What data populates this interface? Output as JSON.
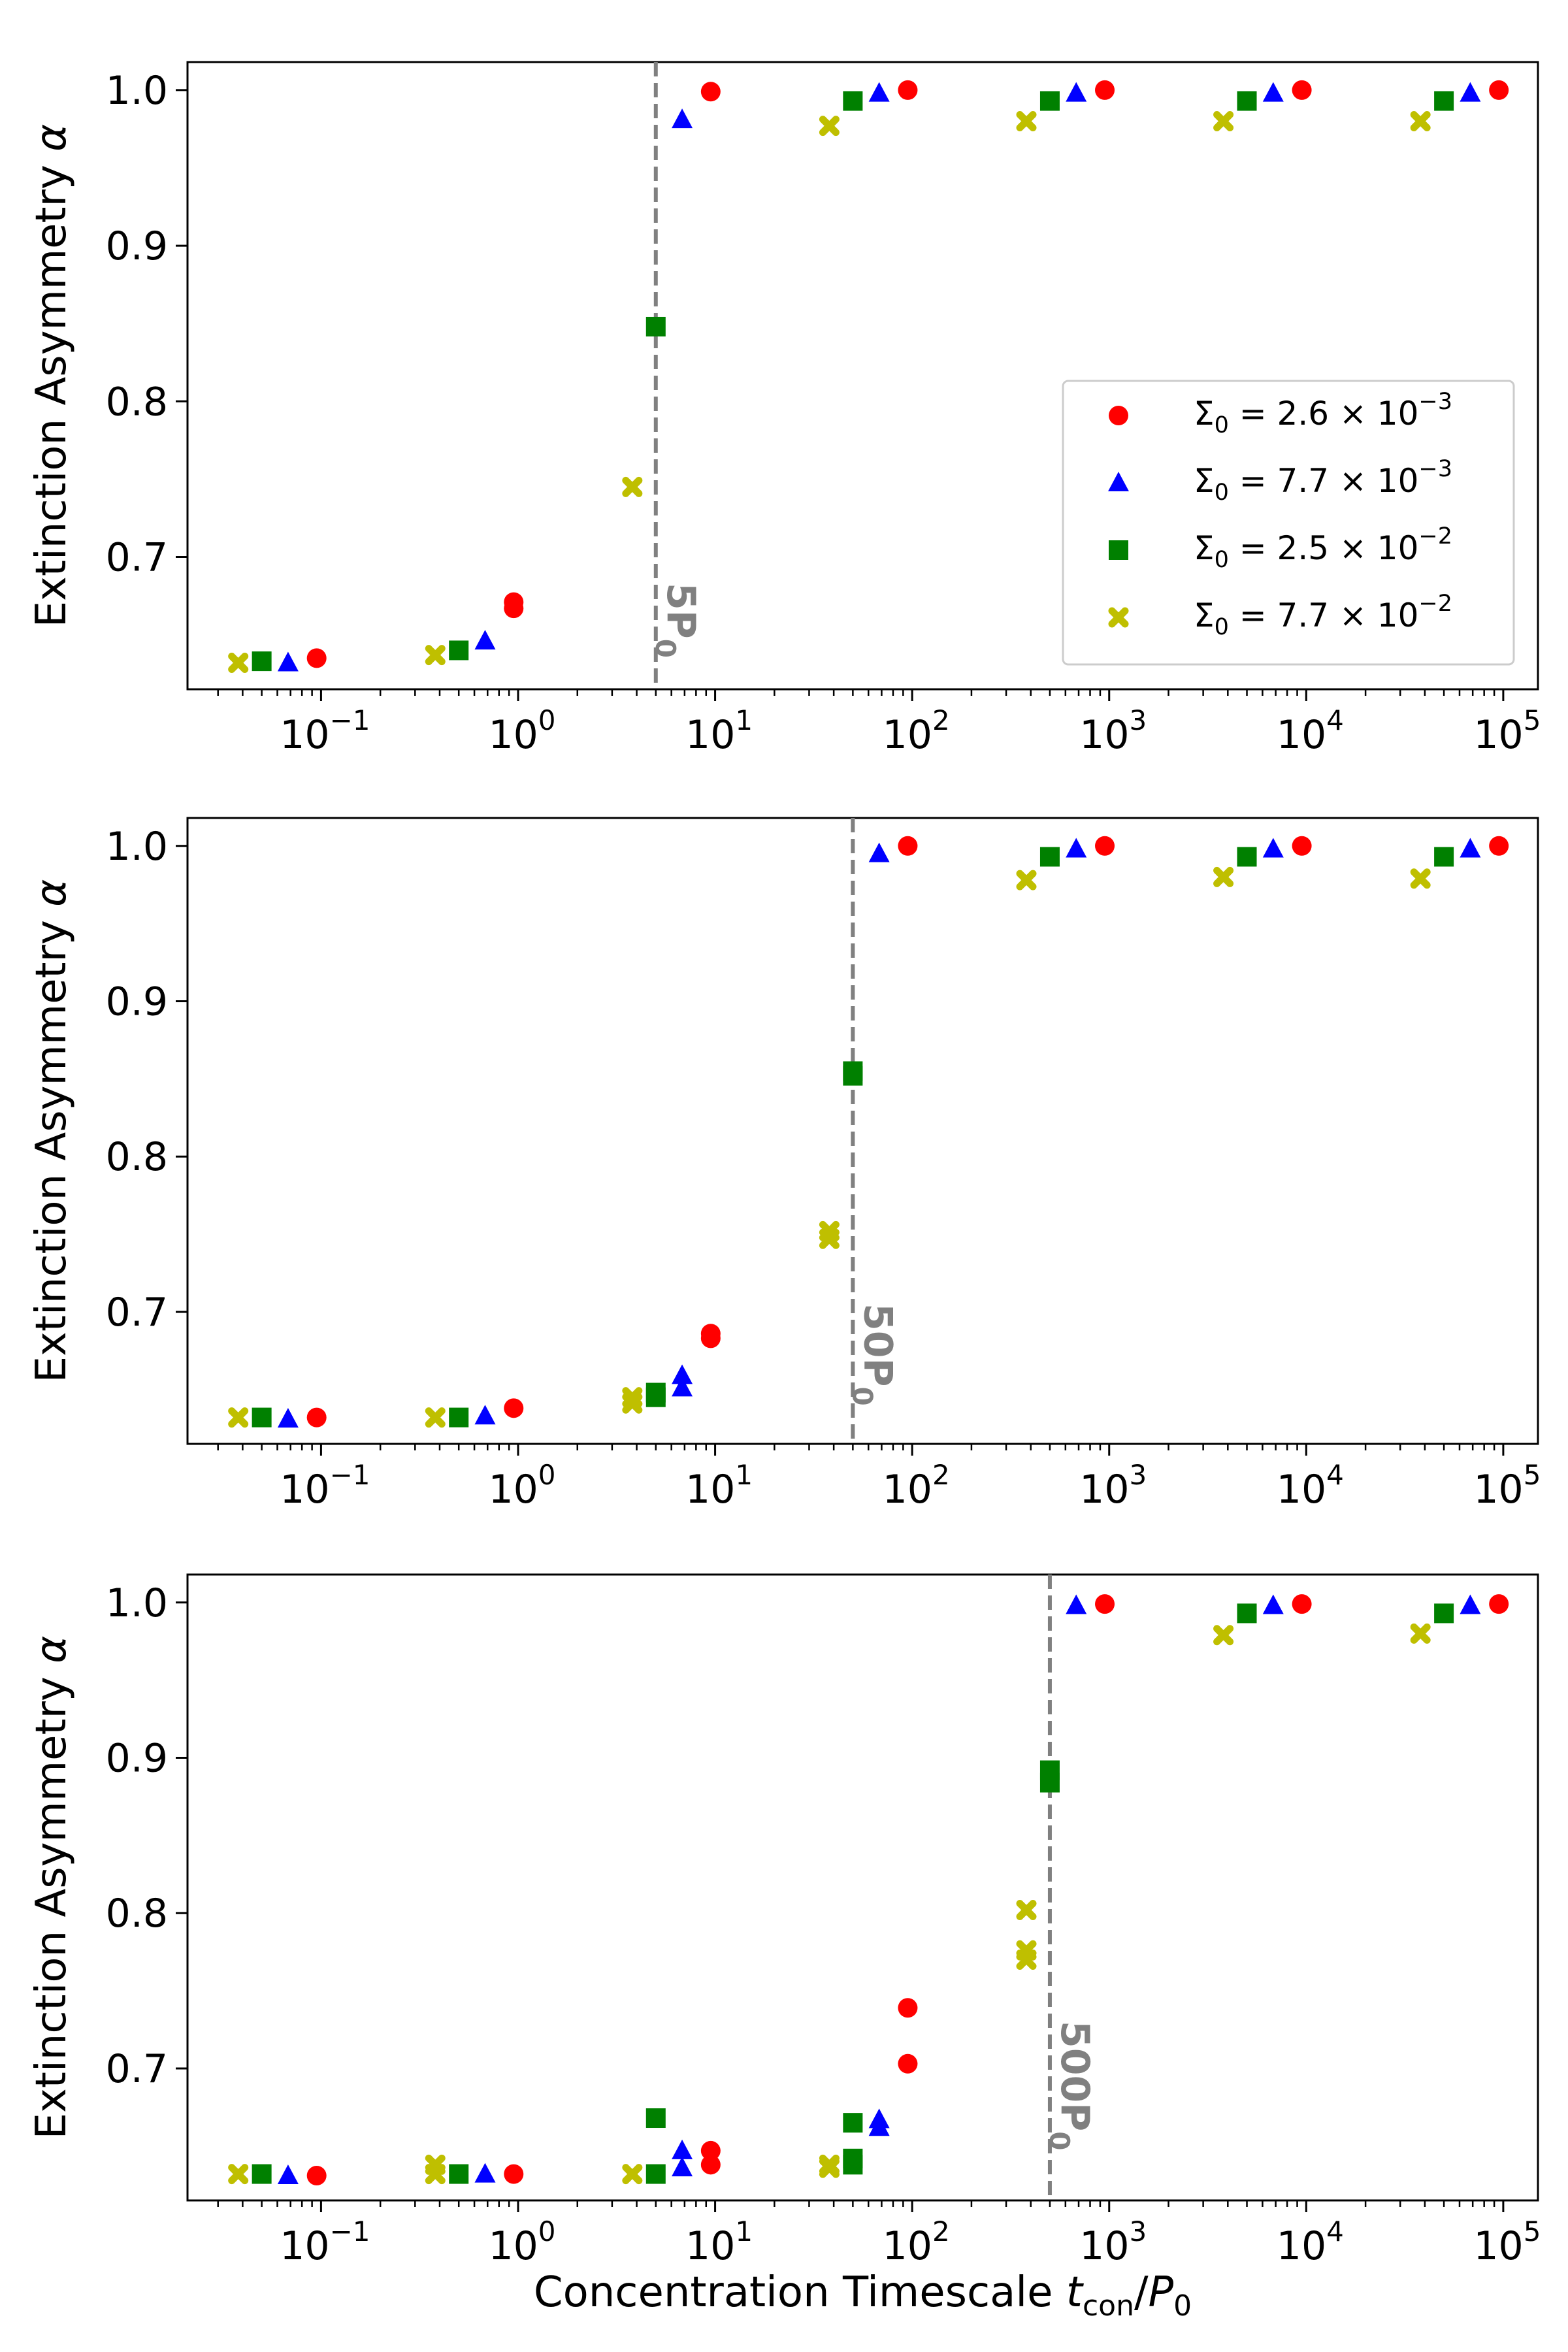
{
  "chart_data": [
    {
      "type": "scatter",
      "panel": "top",
      "xscale": "log",
      "xlim": [
        0.021,
        150000
      ],
      "ylim": [
        0.615,
        1.018
      ],
      "ylabel": "Extinction Asymmetry α",
      "xlabel": "",
      "xticks": [
        {
          "value": 0.1,
          "exp": "−1"
        },
        {
          "value": 1,
          "exp": "0"
        },
        {
          "value": 10,
          "exp": "1"
        },
        {
          "value": 100,
          "exp": "2"
        },
        {
          "value": 1000,
          "exp": "3"
        },
        {
          "value": 10000,
          "exp": "4"
        },
        {
          "value": 100000,
          "exp": "5"
        }
      ],
      "yticks": [
        {
          "value": 0.7,
          "label": "0.7"
        },
        {
          "value": 0.8,
          "label": "0.8"
        },
        {
          "value": 0.9,
          "label": "0.9"
        },
        {
          "value": 1.0,
          "label": "1.0"
        }
      ],
      "vline": {
        "x": 5,
        "label_main": "5P",
        "label_sub": "0"
      },
      "legend": {
        "position": "center-right",
        "entries": [
          {
            "series": "s1",
            "prefix": "Σ",
            "sub": "0",
            "mid": " = 2.6 × 10",
            "exp": "−3"
          },
          {
            "series": "s2",
            "prefix": "Σ",
            "sub": "0",
            "mid": " = 7.7 × 10",
            "exp": "−3"
          },
          {
            "series": "s3",
            "prefix": "Σ",
            "sub": "0",
            "mid": " = 2.5 × 10",
            "exp": "−2"
          },
          {
            "series": "s4",
            "prefix": "Σ",
            "sub": "0",
            "mid": " = 7.7 × 10",
            "exp": "−2"
          }
        ]
      },
      "series": [
        {
          "id": "s1",
          "name": "Σ0 = 2.6 × 10^-3",
          "marker": "circle",
          "color": "#ff0000",
          "x": [
            0.095,
            0.95,
            0.95,
            9.5,
            95,
            950,
            9500,
            95000
          ],
          "y": [
            0.635,
            0.667,
            0.671,
            0.999,
            1.0,
            1.0,
            1.0,
            1.0
          ]
        },
        {
          "id": "s2",
          "name": "Σ0 = 7.7 × 10^-3",
          "marker": "triangle",
          "color": "#0000ff",
          "x": [
            0.068,
            0.68,
            6.8,
            68,
            680,
            6800,
            68000
          ],
          "y": [
            0.632,
            0.646,
            0.981,
            0.998,
            0.998,
            0.998,
            0.998
          ]
        },
        {
          "id": "s3",
          "name": "Σ0 = 2.5 × 10^-2",
          "marker": "square",
          "color": "#008000",
          "x": [
            0.05,
            0.5,
            5,
            50,
            500,
            5000,
            50000
          ],
          "y": [
            0.633,
            0.64,
            0.848,
            0.993,
            0.993,
            0.993,
            0.993
          ]
        },
        {
          "id": "s4",
          "name": "Σ0 = 7.7 × 10^-2",
          "marker": "x",
          "color": "#bfbf00",
          "x": [
            0.038,
            0.38,
            3.8,
            38,
            380,
            3800,
            38000
          ],
          "y": [
            0.632,
            0.637,
            0.745,
            0.977,
            0.98,
            0.98,
            0.98
          ]
        }
      ]
    },
    {
      "type": "scatter",
      "panel": "middle",
      "xscale": "log",
      "xlim": [
        0.021,
        150000
      ],
      "ylim": [
        0.615,
        1.018
      ],
      "ylabel": "Extinction Asymmetry α",
      "xlabel": "",
      "xticks": [
        {
          "value": 0.1,
          "exp": "−1"
        },
        {
          "value": 1,
          "exp": "0"
        },
        {
          "value": 10,
          "exp": "1"
        },
        {
          "value": 100,
          "exp": "2"
        },
        {
          "value": 1000,
          "exp": "3"
        },
        {
          "value": 10000,
          "exp": "4"
        },
        {
          "value": 100000,
          "exp": "5"
        }
      ],
      "yticks": [
        {
          "value": 0.7,
          "label": "0.7"
        },
        {
          "value": 0.8,
          "label": "0.8"
        },
        {
          "value": 0.9,
          "label": "0.9"
        },
        {
          "value": 1.0,
          "label": "1.0"
        }
      ],
      "vline": {
        "x": 50,
        "label_main": "50P",
        "label_sub": "0"
      },
      "series": [
        {
          "id": "s1",
          "name": "Σ0 = 2.6 × 10^-3",
          "marker": "circle",
          "color": "#ff0000",
          "x": [
            0.095,
            0.95,
            9.5,
            9.5,
            95,
            950,
            9500,
            95000
          ],
          "y": [
            0.632,
            0.638,
            0.683,
            0.686,
            1.0,
            1.0,
            1.0,
            1.0
          ]
        },
        {
          "id": "s2",
          "name": "Σ0 = 7.7 × 10^-3",
          "marker": "triangle",
          "color": "#0000ff",
          "x": [
            0.068,
            0.68,
            6.8,
            6.8,
            68,
            680,
            6800,
            68000
          ],
          "y": [
            0.631,
            0.633,
            0.651,
            0.659,
            0.995,
            0.998,
            0.998,
            0.998
          ]
        },
        {
          "id": "s3",
          "name": "Σ0 = 2.5 × 10^-2",
          "marker": "square",
          "color": "#008000",
          "x": [
            0.05,
            0.5,
            5,
            5,
            50,
            50,
            500,
            5000,
            50000
          ],
          "y": [
            0.632,
            0.632,
            0.645,
            0.648,
            0.852,
            0.855,
            0.993,
            0.993,
            0.993
          ]
        },
        {
          "id": "s4",
          "name": "Σ0 = 7.7 × 10^-2",
          "marker": "x",
          "color": "#bfbf00",
          "x": [
            0.038,
            0.38,
            3.8,
            3.8,
            38,
            38,
            380,
            3800,
            38000
          ],
          "y": [
            0.632,
            0.632,
            0.641,
            0.645,
            0.747,
            0.752,
            0.978,
            0.98,
            0.979
          ]
        }
      ]
    },
    {
      "type": "scatter",
      "panel": "bottom",
      "xscale": "log",
      "xlim": [
        0.021,
        150000
      ],
      "ylim": [
        0.615,
        1.018
      ],
      "ylabel": "Extinction Asymmetry α",
      "xlabel": "Concentration Timescale ",
      "xlabel_t": "t",
      "xlabel_con": "con",
      "xlabel_slash": "/P",
      "xlabel_zero": "0",
      "xticks": [
        {
          "value": 0.1,
          "exp": "−1"
        },
        {
          "value": 1,
          "exp": "0"
        },
        {
          "value": 10,
          "exp": "1"
        },
        {
          "value": 100,
          "exp": "2"
        },
        {
          "value": 1000,
          "exp": "3"
        },
        {
          "value": 10000,
          "exp": "4"
        },
        {
          "value": 100000,
          "exp": "5"
        }
      ],
      "yticks": [
        {
          "value": 0.7,
          "label": "0.7"
        },
        {
          "value": 0.8,
          "label": "0.8"
        },
        {
          "value": 0.9,
          "label": "0.9"
        },
        {
          "value": 1.0,
          "label": "1.0"
        }
      ],
      "vline": {
        "x": 500,
        "label_main": "500P",
        "label_sub": "0"
      },
      "series": [
        {
          "id": "s1",
          "name": "Σ0 = 2.6 × 10^-3",
          "marker": "circle",
          "color": "#ff0000",
          "x": [
            0.095,
            0.95,
            9.5,
            9.5,
            95,
            95,
            950,
            9500,
            95000
          ],
          "y": [
            0.631,
            0.632,
            0.638,
            0.647,
            0.703,
            0.739,
            0.999,
            0.999,
            0.999
          ]
        },
        {
          "id": "s2",
          "name": "Σ0 = 7.7 × 10^-3",
          "marker": "triangle",
          "color": "#0000ff",
          "x": [
            0.068,
            0.68,
            6.8,
            6.8,
            68,
            68,
            680,
            6800,
            68000
          ],
          "y": [
            0.631,
            0.632,
            0.636,
            0.647,
            0.662,
            0.667,
            0.998,
            0.998,
            0.998
          ]
        },
        {
          "id": "s3",
          "name": "Σ0 = 2.5 × 10^-2",
          "marker": "square",
          "color": "#008000",
          "x": [
            0.05,
            0.5,
            5,
            5,
            50,
            50,
            50,
            500,
            500,
            5000,
            50000
          ],
          "y": [
            0.632,
            0.632,
            0.632,
            0.668,
            0.638,
            0.642,
            0.665,
            0.884,
            0.892,
            0.993,
            0.993
          ]
        },
        {
          "id": "s4",
          "name": "Σ0 = 7.7 × 10^-2",
          "marker": "x",
          "color": "#bfbf00",
          "x": [
            0.038,
            0.38,
            0.38,
            3.8,
            38,
            38,
            380,
            380,
            380,
            3800,
            38000
          ],
          "y": [
            0.632,
            0.632,
            0.638,
            0.632,
            0.636,
            0.638,
            0.77,
            0.776,
            0.802,
            0.979,
            0.98
          ]
        }
      ]
    }
  ]
}
